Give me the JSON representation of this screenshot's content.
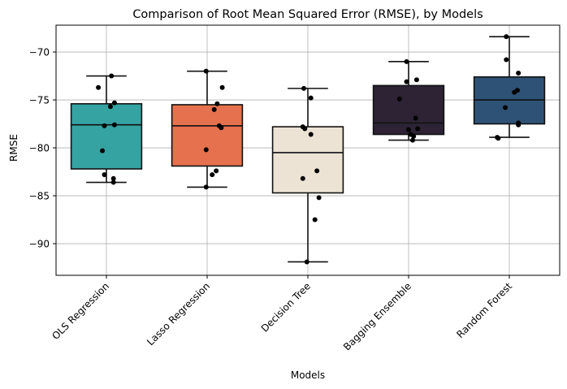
{
  "chart_data": {
    "type": "box",
    "title": "Comparison of Root Mean Squared Error (RMSE), by Models",
    "xlabel": "Models",
    "ylabel": "RMSE",
    "ylim": [
      -93.3,
      -67.2
    ],
    "yticks": [
      -90,
      -85,
      -80,
      -75,
      -70
    ],
    "ytick_labels": [
      "−90",
      "−85",
      "−80",
      "−75",
      "−70"
    ],
    "grid": true,
    "categories": [
      "OLS Regression",
      "Lasso Regression",
      "Decision Tree",
      "Bagging Ensemble",
      "Random Forest"
    ],
    "colors": [
      "#35a3a2",
      "#e5714e",
      "#ede3d5",
      "#2d2335",
      "#2e5275"
    ],
    "boxes": [
      {
        "q1": -82.2,
        "median": -77.6,
        "q3": -75.4,
        "whisker_low": -83.6,
        "whisker_high": -72.5
      },
      {
        "q1": -81.9,
        "median": -77.7,
        "q3": -75.5,
        "whisker_low": -84.1,
        "whisker_high": -72.0
      },
      {
        "q1": -84.7,
        "median": -80.5,
        "q3": -77.8,
        "whisker_low": -91.9,
        "whisker_high": -73.8
      },
      {
        "q1": -78.6,
        "median": -77.4,
        "q3": -73.5,
        "whisker_low": -79.2,
        "whisker_high": -71.0
      },
      {
        "q1": -77.5,
        "median": -75.0,
        "q3": -72.6,
        "whisker_low": -78.9,
        "whisker_high": -68.4
      }
    ],
    "points": [
      [
        {
          "dx": -0.08,
          "y": -73.7
        },
        {
          "dx": 0.05,
          "y": -72.5
        },
        {
          "dx": 0.08,
          "y": -75.3
        },
        {
          "dx": 0.04,
          "y": -75.7
        },
        {
          "dx": -0.02,
          "y": -77.7
        },
        {
          "dx": 0.08,
          "y": -77.6
        },
        {
          "dx": -0.04,
          "y": -80.3
        },
        {
          "dx": -0.02,
          "y": -82.8
        },
        {
          "dx": 0.07,
          "y": -83.2
        },
        {
          "dx": 0.07,
          "y": -83.6
        }
      ],
      [
        {
          "dx": -0.01,
          "y": -72.0
        },
        {
          "dx": 0.15,
          "y": -73.7
        },
        {
          "dx": 0.1,
          "y": -75.4
        },
        {
          "dx": 0.07,
          "y": -76.0
        },
        {
          "dx": 0.12,
          "y": -77.7
        },
        {
          "dx": 0.14,
          "y": -77.9
        },
        {
          "dx": -0.01,
          "y": -80.2
        },
        {
          "dx": 0.09,
          "y": -82.4
        },
        {
          "dx": 0.05,
          "y": -82.8
        },
        {
          "dx": -0.01,
          "y": -84.1
        }
      ],
      [
        {
          "dx": -0.04,
          "y": -73.8
        },
        {
          "dx": 0.03,
          "y": -74.8
        },
        {
          "dx": -0.05,
          "y": -77.8
        },
        {
          "dx": -0.03,
          "y": -78.0
        },
        {
          "dx": 0.03,
          "y": -78.6
        },
        {
          "dx": 0.09,
          "y": -82.4
        },
        {
          "dx": -0.05,
          "y": -83.2
        },
        {
          "dx": 0.11,
          "y": -85.2
        },
        {
          "dx": 0.07,
          "y": -87.5
        },
        {
          "dx": -0.01,
          "y": -91.9
        }
      ],
      [
        {
          "dx": -0.02,
          "y": -71.0
        },
        {
          "dx": 0.08,
          "y": -72.9
        },
        {
          "dx": -0.02,
          "y": -73.1
        },
        {
          "dx": -0.09,
          "y": -74.9
        },
        {
          "dx": 0.07,
          "y": -76.9
        },
        {
          "dx": 0.09,
          "y": -78.0
        },
        {
          "dx": 0.0,
          "y": -78.1
        },
        {
          "dx": 0.02,
          "y": -78.6
        },
        {
          "dx": 0.05,
          "y": -78.8
        },
        {
          "dx": 0.04,
          "y": -79.2
        }
      ],
      [
        {
          "dx": -0.03,
          "y": -68.4
        },
        {
          "dx": -0.03,
          "y": -70.8
        },
        {
          "dx": 0.09,
          "y": -72.2
        },
        {
          "dx": 0.08,
          "y": -74.0
        },
        {
          "dx": 0.05,
          "y": -74.2
        },
        {
          "dx": -0.04,
          "y": -75.8
        },
        {
          "dx": 0.09,
          "y": -77.4
        },
        {
          "dx": 0.09,
          "y": -77.6
        },
        {
          "dx": -0.12,
          "y": -78.9
        },
        {
          "dx": -0.11,
          "y": -79.0
        }
      ]
    ]
  }
}
